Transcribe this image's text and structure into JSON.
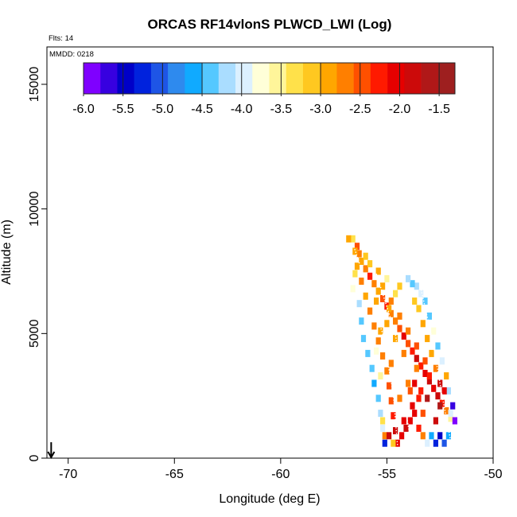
{
  "chart_data": {
    "type": "heatmap",
    "title": "ORCAS RF14vlonS PLWCD_LWI (Log)",
    "annotation_flts": "Flts: 14",
    "annotation_mmdd": "MMDD: 0218",
    "xlabel": "Longitude (deg E)",
    "ylabel": "Altitude (m)",
    "xlim": [
      -71,
      -50
    ],
    "ylim": [
      0,
      16500
    ],
    "x_ticks": [
      "-70",
      "-65",
      "-60",
      "-55",
      "-50"
    ],
    "y_ticks": [
      "0",
      "5000",
      "10000",
      "15000"
    ],
    "colorbar": {
      "range": [
        -6.0,
        -1.3
      ],
      "tick_labels": [
        "-6.0",
        "-5.5",
        "-5.0",
        "-4.5",
        "-4.0",
        "-3.5",
        "-3.0",
        "-2.5",
        "-2.0",
        "-1.5"
      ],
      "colors": [
        "#7f00ff",
        "#3700e0",
        "#0000c8",
        "#0022dd",
        "#1e55e6",
        "#2e8aee",
        "#10aaff",
        "#55c8ff",
        "#aaddff",
        "#dcf0ff",
        "#ffffd8",
        "#fff59a",
        "#ffe14a",
        "#ffc820",
        "#ffa600",
        "#ff7f00",
        "#ff5000",
        "#ff1a00",
        "#e60000",
        "#cc0a0a",
        "#b01818",
        "#9e1f1f"
      ]
    },
    "arrow_marker_longitude": -70.8,
    "cells": [
      [
        -56.6,
        8800,
        -3.3
      ],
      [
        -56.4,
        8500,
        -2.4
      ],
      [
        -56.3,
        8200,
        -2.7
      ],
      [
        -56.2,
        7900,
        -2.9
      ],
      [
        -56.0,
        7600,
        -2.6
      ],
      [
        -55.8,
        7300,
        -2.2
      ],
      [
        -55.6,
        7000,
        -2.7
      ],
      [
        -55.4,
        6700,
        -2.8
      ],
      [
        -55.2,
        6400,
        -2.5
      ],
      [
        -55.0,
        6100,
        -2.2
      ],
      [
        -54.8,
        5800,
        -2.6
      ],
      [
        -54.6,
        5500,
        -2.7
      ],
      [
        -54.4,
        5200,
        -2.4
      ],
      [
        -54.2,
        4900,
        -2.1
      ],
      [
        -54.0,
        4600,
        -2.4
      ],
      [
        -53.8,
        4300,
        -2.3
      ],
      [
        -53.6,
        4000,
        -1.8
      ],
      [
        -53.4,
        3700,
        -2.2
      ],
      [
        -53.2,
        3400,
        -2.0
      ],
      [
        -53.0,
        3100,
        -1.8
      ],
      [
        -52.8,
        2800,
        -2.1
      ],
      [
        -52.6,
        2500,
        -1.8
      ],
      [
        -52.4,
        2200,
        -2.3
      ],
      [
        -52.2,
        1900,
        -2.6
      ],
      [
        -52.0,
        1600,
        -3.6
      ],
      [
        -56.8,
        8800,
        -3.0
      ],
      [
        -56.5,
        8300,
        -2.9
      ],
      [
        -56.4,
        7700,
        -2.8
      ],
      [
        -56.2,
        7100,
        -2.7
      ],
      [
        -56.0,
        6500,
        -2.8
      ],
      [
        -55.8,
        5900,
        -2.7
      ],
      [
        -55.6,
        5300,
        -2.7
      ],
      [
        -55.4,
        4700,
        -2.6
      ],
      [
        -55.2,
        4100,
        -2.6
      ],
      [
        -55.0,
        3500,
        -2.6
      ],
      [
        -54.9,
        2900,
        -2.5
      ],
      [
        -54.8,
        2300,
        -2.4
      ],
      [
        -54.7,
        1700,
        -2.3
      ],
      [
        -54.6,
        1100,
        -1.9
      ],
      [
        -54.5,
        600,
        -2.1
      ],
      [
        -55.2,
        6900,
        -2.8
      ],
      [
        -54.8,
        6300,
        -2.7
      ],
      [
        -54.4,
        5700,
        -2.7
      ],
      [
        -54.0,
        5100,
        -2.6
      ],
      [
        -53.6,
        4500,
        -2.5
      ],
      [
        -53.2,
        3900,
        -2.4
      ],
      [
        -53.0,
        3300,
        -2.3
      ],
      [
        -53.4,
        2700,
        -2.2
      ],
      [
        -53.8,
        2100,
        -2.1
      ],
      [
        -54.2,
        1500,
        -2.0
      ],
      [
        -54.4,
        2400,
        -2.6
      ],
      [
        -54.0,
        3000,
        -2.7
      ],
      [
        -53.6,
        3600,
        -2.6
      ],
      [
        -54.2,
        4200,
        -2.7
      ],
      [
        -54.6,
        4800,
        -2.8
      ],
      [
        -55.0,
        5400,
        -2.8
      ],
      [
        -54.9,
        6000,
        -2.8
      ],
      [
        -55.5,
        6300,
        -2.9
      ],
      [
        -55.3,
        5100,
        -2.8
      ],
      [
        -54.8,
        3800,
        -2.7
      ],
      [
        -56.5,
        7400,
        -3.4
      ],
      [
        -56.6,
        6800,
        -3.8
      ],
      [
        -56.3,
        6200,
        -4.1
      ],
      [
        -56.2,
        5500,
        -4.3
      ],
      [
        -56.1,
        4800,
        -4.5
      ],
      [
        -55.9,
        4200,
        -4.4
      ],
      [
        -55.7,
        3600,
        -4.3
      ],
      [
        -55.6,
        3000,
        -4.6
      ],
      [
        -55.4,
        2400,
        -4.4
      ],
      [
        -55.3,
        1800,
        -4.2
      ],
      [
        -55.2,
        1200,
        -4.0
      ],
      [
        -55.1,
        600,
        -5.3
      ],
      [
        -55.5,
        4300,
        -3.7
      ],
      [
        -55.3,
        3300,
        -3.5
      ],
      [
        -55.2,
        1500,
        -3.3
      ],
      [
        -55.1,
        900,
        -2.6
      ],
      [
        -54.9,
        900,
        -1.8
      ],
      [
        -54.7,
        600,
        -3.1
      ],
      [
        -54.3,
        900,
        -2.1
      ],
      [
        -54.1,
        1200,
        -1.9
      ],
      [
        -53.9,
        1500,
        -2.0
      ],
      [
        -53.7,
        1800,
        -2.1
      ],
      [
        -53.5,
        1200,
        -2.3
      ],
      [
        -53.3,
        900,
        -2.7
      ],
      [
        -53.1,
        600,
        -4.0
      ],
      [
        -52.9,
        900,
        -4.6
      ],
      [
        -52.7,
        600,
        -5.2
      ],
      [
        -52.5,
        900,
        -5.5
      ],
      [
        -52.3,
        600,
        -5.0
      ],
      [
        -52.1,
        900,
        -4.6
      ],
      [
        -52.0,
        1800,
        -3.9
      ],
      [
        -51.9,
        2100,
        -5.7
      ],
      [
        -51.8,
        1500,
        -6.0
      ],
      [
        -52.1,
        2700,
        -4.2
      ],
      [
        -52.2,
        3300,
        -3.0
      ],
      [
        -52.4,
        3900,
        -3.9
      ],
      [
        -52.6,
        4500,
        -4.4
      ],
      [
        -52.8,
        5100,
        -3.7
      ],
      [
        -53.0,
        5700,
        -4.5
      ],
      [
        -53.2,
        6300,
        -4.3
      ],
      [
        -53.4,
        6600,
        -4.0
      ],
      [
        -53.6,
        6900,
        -4.1
      ],
      [
        -53.8,
        7000,
        -4.3
      ],
      [
        -54.0,
        7200,
        -4.2
      ],
      [
        -54.4,
        6900,
        -3.1
      ],
      [
        -54.6,
        6600,
        -3.3
      ],
      [
        -55.0,
        7200,
        -3.6
      ],
      [
        -55.4,
        7500,
        -3.0
      ],
      [
        -55.8,
        7800,
        -3.2
      ],
      [
        -56.0,
        8100,
        -3.1
      ],
      [
        -52.5,
        3000,
        -1.9
      ],
      [
        -52.7,
        3600,
        -2.6
      ],
      [
        -52.9,
        4200,
        -2.9
      ],
      [
        -53.1,
        4800,
        -3.0
      ],
      [
        -53.3,
        5400,
        -2.9
      ],
      [
        -53.5,
        6000,
        -3.1
      ],
      [
        -53.7,
        6300,
        -3.2
      ],
      [
        -52.3,
        2700,
        -2.0
      ],
      [
        -52.5,
        2100,
        -1.7
      ],
      [
        -52.7,
        1500,
        -1.9
      ],
      [
        -53.1,
        2400,
        -1.6
      ],
      [
        -53.3,
        1800,
        -2.4
      ],
      [
        -53.5,
        2400,
        -2.2
      ],
      [
        -53.7,
        3000,
        -2.1
      ],
      [
        -53.9,
        2700,
        -2.4
      ]
    ]
  }
}
